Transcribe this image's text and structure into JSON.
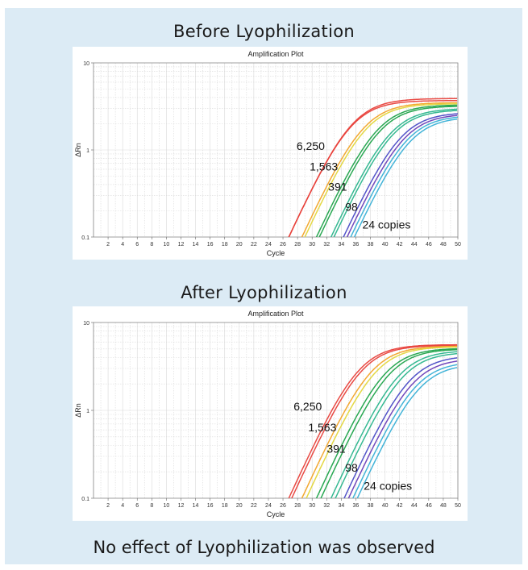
{
  "headings": {
    "before": "Before Lyophilization",
    "after": "After Lyophilization"
  },
  "footer": "No effect of Lyophilization was observed",
  "colors": {
    "panel_bg": "#dcebf5",
    "series": [
      "#e8403a",
      "#f2a427",
      "#e3d63a",
      "#1fa34a",
      "#2bb58c",
      "#4a4bc6",
      "#6a3fb8",
      "#39b0d6"
    ]
  },
  "chart_data": [
    {
      "type": "line",
      "title": "Amplification Plot",
      "xlabel": "Cycle",
      "ylabel": "ΔRn",
      "xlim": [
        0,
        50
      ],
      "ylim": [
        0.1,
        10
      ],
      "yscale": "log",
      "grid": true,
      "x_ticks": [
        2,
        4,
        6,
        8,
        10,
        12,
        14,
        16,
        18,
        20,
        22,
        24,
        26,
        28,
        30,
        32,
        34,
        36,
        38,
        40,
        42,
        44,
        46,
        48,
        50
      ],
      "y_ticks": [
        0.1,
        1,
        10
      ],
      "series": [
        {
          "color": "#e8403a",
          "threshold_cycle": 26.8,
          "plateau": 3.9
        },
        {
          "color": "#e8403a",
          "threshold_cycle": 26.8,
          "plateau": 3.7
        },
        {
          "color": "#f2a427",
          "threshold_cycle": 28.6,
          "plateau": 3.5
        },
        {
          "color": "#e3d63a",
          "threshold_cycle": 29.0,
          "plateau": 3.4
        },
        {
          "color": "#1fa34a",
          "threshold_cycle": 30.6,
          "plateau": 3.3
        },
        {
          "color": "#1fa34a",
          "threshold_cycle": 31.0,
          "plateau": 3.2
        },
        {
          "color": "#2bb58c",
          "threshold_cycle": 32.6,
          "plateau": 3.0
        },
        {
          "color": "#2bb58c",
          "threshold_cycle": 33.0,
          "plateau": 2.9
        },
        {
          "color": "#4a4bc6",
          "threshold_cycle": 34.3,
          "plateau": 2.7
        },
        {
          "color": "#6a3fb8",
          "threshold_cycle": 34.8,
          "plateau": 2.6
        },
        {
          "color": "#39b0d6",
          "threshold_cycle": 35.3,
          "plateau": 2.5
        },
        {
          "color": "#39b0d6",
          "threshold_cycle": 35.8,
          "plateau": 2.4
        }
      ],
      "annotations": [
        {
          "text": "6,250",
          "x": 29.8,
          "y": 1.0
        },
        {
          "text": "1,563",
          "x": 31.6,
          "y": 0.58
        },
        {
          "text": "391",
          "x": 33.5,
          "y": 0.34
        },
        {
          "text": "98",
          "x": 35.4,
          "y": 0.2
        },
        {
          "text": "24 copies",
          "x": 40.2,
          "y": 0.125
        }
      ]
    },
    {
      "type": "line",
      "title": "Amplification Plot",
      "xlabel": "Cycle",
      "ylabel": "ΔRn",
      "xlim": [
        0,
        50
      ],
      "ylim": [
        0.1,
        10
      ],
      "yscale": "log",
      "grid": true,
      "x_ticks": [
        2,
        4,
        6,
        8,
        10,
        12,
        14,
        16,
        18,
        20,
        22,
        24,
        26,
        28,
        30,
        32,
        34,
        36,
        38,
        40,
        42,
        44,
        46,
        48,
        50
      ],
      "y_ticks": [
        0.1,
        1,
        10
      ],
      "series": [
        {
          "color": "#e8403a",
          "threshold_cycle": 26.8,
          "plateau": 5.6
        },
        {
          "color": "#e8403a",
          "threshold_cycle": 27.2,
          "plateau": 5.5
        },
        {
          "color": "#f2a427",
          "threshold_cycle": 28.6,
          "plateau": 5.4
        },
        {
          "color": "#e3d63a",
          "threshold_cycle": 29.2,
          "plateau": 5.3
        },
        {
          "color": "#1fa34a",
          "threshold_cycle": 30.6,
          "plateau": 5.1
        },
        {
          "color": "#1fa34a",
          "threshold_cycle": 31.2,
          "plateau": 5.0
        },
        {
          "color": "#2bb58c",
          "threshold_cycle": 32.6,
          "plateau": 4.8
        },
        {
          "color": "#2bb58c",
          "threshold_cycle": 33.2,
          "plateau": 4.6
        },
        {
          "color": "#4a4bc6",
          "threshold_cycle": 34.4,
          "plateau": 4.2
        },
        {
          "color": "#6a3fb8",
          "threshold_cycle": 35.0,
          "plateau": 3.9
        },
        {
          "color": "#39b0d6",
          "threshold_cycle": 35.6,
          "plateau": 3.6
        },
        {
          "color": "#39b0d6",
          "threshold_cycle": 36.2,
          "plateau": 3.4
        }
      ],
      "annotations": [
        {
          "text": "6,250",
          "x": 29.4,
          "y": 1.0
        },
        {
          "text": "1,563",
          "x": 31.4,
          "y": 0.58
        },
        {
          "text": "391",
          "x": 33.3,
          "y": 0.33
        },
        {
          "text": "98",
          "x": 35.4,
          "y": 0.2
        },
        {
          "text": "24 copies",
          "x": 40.4,
          "y": 0.125
        }
      ]
    }
  ]
}
